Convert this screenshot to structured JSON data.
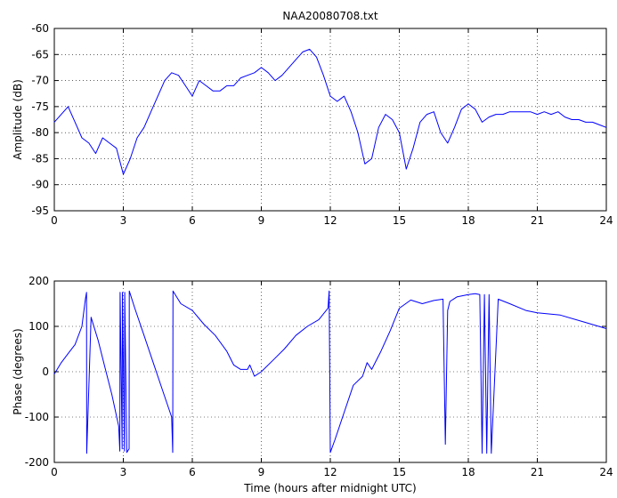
{
  "window": {
    "title": "NAA20080708.txt"
  },
  "chart_data": [
    {
      "type": "line",
      "title": "NAA20080708.txt",
      "xlabel": "",
      "ylabel": "Amplitude (dB)",
      "xlim": [
        0,
        24
      ],
      "ylim": [
        -95,
        -60
      ],
      "xticks": [
        0,
        3,
        6,
        9,
        12,
        15,
        18,
        21,
        24
      ],
      "yticks": [
        -95,
        -90,
        -85,
        -80,
        -75,
        -70,
        -65,
        -60
      ],
      "grid": true,
      "line_color": "#0000ff",
      "series": [
        {
          "x": [
            0,
            0.3,
            0.6,
            0.9,
            1.2,
            1.5,
            1.8,
            2.1,
            2.4,
            2.7,
            3.0,
            3.3,
            3.6,
            3.9,
            4.2,
            4.5,
            4.8,
            5.1,
            5.4,
            5.7,
            6.0,
            6.3,
            6.6,
            6.9,
            7.2,
            7.5,
            7.8,
            8.1,
            8.4,
            8.7,
            9.0,
            9.3,
            9.6,
            9.9,
            10.2,
            10.5,
            10.8,
            11.1,
            11.4,
            11.7,
            12.0,
            12.3,
            12.6,
            12.9,
            13.2,
            13.5,
            13.8,
            14.1,
            14.4,
            14.7,
            15.0,
            15.3,
            15.6,
            15.9,
            16.2,
            16.5,
            16.8,
            17.1,
            17.4,
            17.7,
            18.0,
            18.3,
            18.6,
            18.9,
            19.2,
            19.5,
            19.8,
            20.1,
            20.4,
            20.7,
            21.0,
            21.3,
            21.6,
            21.9,
            22.2,
            22.5,
            22.8,
            23.1,
            23.4,
            23.7,
            24.0
          ],
          "values": [
            -78,
            -76.5,
            -75,
            -78,
            -81,
            -82,
            -84,
            -81,
            -82,
            -83,
            -88,
            -85,
            -81,
            -79,
            -76,
            -73,
            -70,
            -68.5,
            -69,
            -71,
            -73,
            -70,
            -71,
            -72,
            -72,
            -71,
            -71,
            -69.5,
            -69,
            -68.5,
            -67.5,
            -68.5,
            -70,
            -69,
            -67.5,
            -66,
            -64.5,
            -64,
            -65.5,
            -69,
            -73,
            -74,
            -73,
            -76,
            -80,
            -86,
            -85,
            -79,
            -76.5,
            -77.5,
            -80,
            -87,
            -83,
            -78,
            -76.5,
            -76,
            -80,
            -82,
            -79,
            -75.5,
            -74.5,
            -75.5,
            -78,
            -77,
            -76.5,
            -76.5,
            -76,
            -76,
            -76,
            -76,
            -76.5,
            -76,
            -76.5,
            -76,
            -77,
            -77.5,
            -77.5,
            -78,
            -78,
            -78.5,
            -79
          ]
        }
      ]
    },
    {
      "type": "line",
      "title": "",
      "xlabel": "Time (hours after midnight UTC)",
      "ylabel": "Phase (degrees)",
      "xlim": [
        0,
        24
      ],
      "ylim": [
        -200,
        200
      ],
      "xticks": [
        0,
        3,
        6,
        9,
        12,
        15,
        18,
        21,
        24
      ],
      "yticks": [
        -200,
        -100,
        0,
        100,
        200
      ],
      "grid": true,
      "line_color": "#0000ff",
      "series": [
        {
          "x": [
            0,
            0.3,
            0.6,
            0.9,
            1.2,
            1.35,
            1.4,
            1.41,
            1.6,
            1.9,
            2.2,
            2.5,
            2.8,
            2.85,
            2.86,
            2.95,
            2.96,
            3.05,
            3.06,
            3.15,
            3.25,
            3.26,
            3.5,
            3.9,
            4.3,
            4.7,
            5.1,
            5.15,
            5.16,
            5.5,
            6.0,
            6.5,
            7.0,
            7.5,
            7.8,
            8.1,
            8.4,
            8.5,
            8.7,
            9.0,
            9.5,
            10.0,
            10.5,
            11.0,
            11.5,
            11.9,
            11.95,
            12.0,
            12.2,
            12.6,
            13.0,
            13.4,
            13.6,
            13.8,
            14.2,
            14.6,
            15.0,
            15.5,
            16.0,
            16.5,
            16.9,
            17.0,
            17.1,
            17.2,
            17.5,
            18.0,
            18.3,
            18.5,
            18.6,
            18.7,
            18.8,
            18.9,
            19.0,
            19.3,
            19.8,
            20.5,
            21.0,
            22.0,
            23.0,
            24.0
          ],
          "values": [
            -5,
            20,
            40,
            60,
            100,
            160,
            175,
            -180,
            120,
            70,
            10,
            -50,
            -120,
            -175,
            175,
            -170,
            175,
            -175,
            175,
            -178,
            -170,
            178,
            140,
            80,
            20,
            -40,
            -100,
            -178,
            178,
            150,
            135,
            105,
            80,
            45,
            15,
            5,
            5,
            15,
            -10,
            0,
            25,
            50,
            80,
            100,
            115,
            140,
            178,
            -178,
            -150,
            -90,
            -30,
            -10,
            20,
            5,
            45,
            90,
            140,
            158,
            150,
            157,
            160,
            -160,
            135,
            155,
            165,
            170,
            172,
            170,
            -180,
            170,
            -180,
            170,
            -180,
            160,
            150,
            135,
            130,
            125,
            110,
            95
          ]
        }
      ]
    }
  ]
}
